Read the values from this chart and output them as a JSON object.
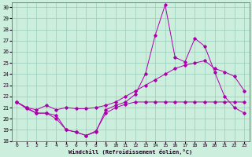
{
  "xlabel": "Windchill (Refroidissement éolien,°C)",
  "bg_color": "#cceedd",
  "grid_color": "#99ccbb",
  "line_color": "#aa00aa",
  "xlim": [
    -0.5,
    23.5
  ],
  "ylim": [
    18,
    30.4
  ],
  "yticks": [
    18,
    19,
    20,
    21,
    22,
    23,
    24,
    25,
    26,
    27,
    28,
    29,
    30
  ],
  "xticks": [
    0,
    1,
    2,
    3,
    4,
    5,
    6,
    7,
    8,
    9,
    10,
    11,
    12,
    13,
    14,
    15,
    16,
    17,
    18,
    19,
    20,
    21,
    22,
    23
  ],
  "line1_x": [
    0,
    1,
    2,
    3,
    4,
    5,
    6,
    7,
    8,
    9,
    10,
    11,
    12,
    13,
    14,
    15,
    16,
    17,
    18,
    19,
    20,
    21,
    22,
    23
  ],
  "line1_y": [
    21.5,
    20.9,
    20.5,
    20.5,
    20.3,
    19.0,
    18.8,
    18.5,
    18.8,
    20.8,
    21.2,
    21.5,
    22.2,
    24.0,
    27.5,
    30.2,
    25.5,
    25.1,
    27.2,
    26.5,
    24.2,
    22.0,
    21.0,
    20.5
  ],
  "line2_x": [
    0,
    1,
    2,
    3,
    4,
    5,
    6,
    7,
    8,
    9,
    10,
    11,
    12,
    13,
    14,
    15,
    16,
    17,
    18,
    19,
    20,
    21,
    22,
    23
  ],
  "line2_y": [
    21.5,
    21.0,
    20.8,
    21.2,
    20.8,
    21.0,
    20.9,
    20.9,
    21.0,
    21.2,
    21.5,
    22.0,
    22.5,
    23.0,
    23.5,
    24.0,
    24.5,
    24.8,
    25.0,
    25.2,
    24.5,
    24.2,
    23.8,
    22.5
  ],
  "line3_x": [
    0,
    1,
    2,
    3,
    4,
    5,
    6,
    7,
    8,
    9,
    10,
    11,
    12,
    13,
    14,
    15,
    16,
    17,
    18,
    19,
    20,
    21,
    22,
    23
  ],
  "line3_y": [
    21.5,
    21.0,
    20.5,
    20.5,
    20.0,
    19.0,
    18.8,
    18.5,
    18.9,
    20.5,
    21.0,
    21.3,
    21.5,
    21.5,
    21.5,
    21.5,
    21.5,
    21.5,
    21.5,
    21.5,
    21.5,
    21.5,
    21.5,
    21.5
  ]
}
